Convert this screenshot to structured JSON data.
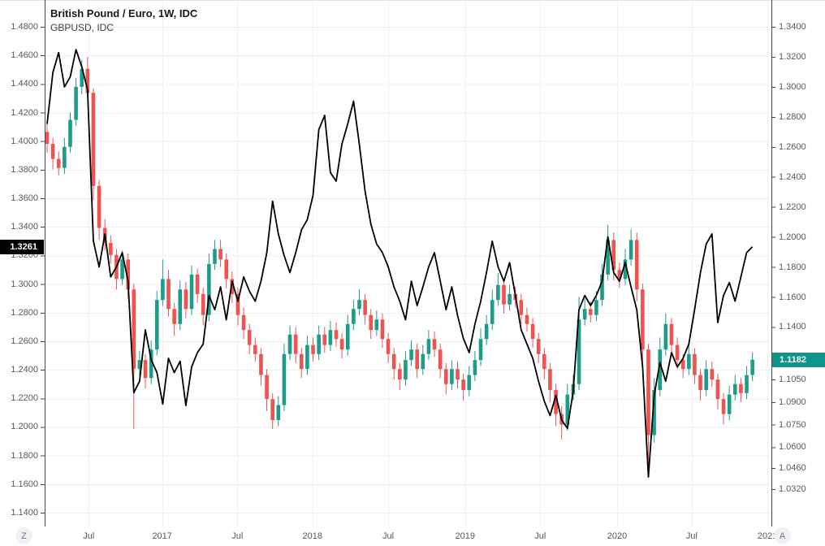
{
  "legend": {
    "title": "British Pound / Euro, 1W, IDC",
    "subtitle": "GBPUSD, IDC"
  },
  "buttons": {
    "zoom_hint": "Z",
    "axis_hint": "A"
  },
  "colors": {
    "up_candle": "#1d9c89",
    "down_candle": "#ef5350",
    "overlay_line": "#000000",
    "grid": "#edf0f7",
    "axis_border": "#434651",
    "outer_border": "#e0e3eb",
    "axis_text": "#555a64",
    "left_price_label_bg": "#000000",
    "right_price_label_bg": "#0f9489",
    "price_label_text": "#ffffff"
  },
  "chart_data": {
    "type": "candlestick+line",
    "title": "British Pound / Euro, 1W, IDC with GBPUSD, IDC overlay",
    "timeframe": "1W",
    "grid": true,
    "x_axis": {
      "ticks": [
        {
          "label": "Jul",
          "bar": 7.2
        },
        {
          "label": "2017",
          "bar": 19.9
        },
        {
          "label": "Jul",
          "bar": 32.9
        },
        {
          "label": "2018",
          "bar": 45.9
        },
        {
          "label": "Jul",
          "bar": 59.0
        },
        {
          "label": "2019",
          "bar": 72.3
        },
        {
          "label": "Jul",
          "bar": 85.3
        },
        {
          "label": "2020",
          "bar": 98.6
        },
        {
          "label": "Jul",
          "bar": 111.5
        },
        {
          "label": "2021",
          "bar": 124.6
        }
      ]
    },
    "left_axis": {
      "series": "GBPUSD",
      "min": 1.14,
      "max": 1.48,
      "ticks": [
        1.48,
        1.46,
        1.44,
        1.42,
        1.4,
        1.38,
        1.36,
        1.34,
        1.32,
        1.3,
        1.28,
        1.26,
        1.24,
        1.22,
        1.2,
        1.18,
        1.16,
        1.14
      ],
      "last_price": 1.3261,
      "last_price_label": "1.3261"
    },
    "right_axis": {
      "series": "GBP/EUR",
      "min": 1.032,
      "max": 1.34,
      "ticks": [
        1.34,
        1.32,
        1.3,
        1.28,
        1.26,
        1.24,
        1.22,
        1.2,
        1.18,
        1.16,
        1.14,
        1.105,
        1.09,
        1.075,
        1.06,
        1.046,
        1.032
      ],
      "last_price": 1.1182,
      "last_price_label": "1.1182"
    },
    "series": [
      {
        "name": "British Pound / Euro weekly candles",
        "type": "candlestick",
        "axis": "right",
        "first_open": 1.27,
        "points_format": [
          "close",
          "upper_wick",
          "lower_wick"
        ],
        "points": [
          [
            1.262,
            0.005,
            0.006
          ],
          [
            1.252,
            0.004,
            0.007
          ],
          [
            1.246,
            0.005,
            0.005
          ],
          [
            1.26,
            0.006,
            0.004
          ],
          [
            1.278,
            0.005,
            0.004
          ],
          [
            1.3,
            0.006,
            0.004
          ],
          [
            1.312,
            0.006,
            0.005
          ],
          [
            1.296,
            0.008,
            0.004
          ],
          [
            1.234,
            0.003,
            0.01
          ],
          [
            1.206,
            0.004,
            0.008
          ],
          [
            1.196,
            0.006,
            0.005
          ],
          [
            1.188,
            0.005,
            0.006
          ],
          [
            1.172,
            0.004,
            0.007
          ],
          [
            1.185,
            0.006,
            0.004
          ],
          [
            1.165,
            0.004,
            0.006
          ],
          [
            1.112,
            0.004,
            0.04
          ],
          [
            1.118,
            0.006,
            0.005
          ],
          [
            1.106,
            0.004,
            0.007
          ],
          [
            1.125,
            0.006,
            0.004
          ],
          [
            1.158,
            0.006,
            0.004
          ],
          [
            1.172,
            0.013,
            0.004
          ],
          [
            1.152,
            0.006,
            0.005
          ],
          [
            1.142,
            0.004,
            0.008
          ],
          [
            1.165,
            0.006,
            0.004
          ],
          [
            1.152,
            0.005,
            0.006
          ],
          [
            1.175,
            0.006,
            0.004
          ],
          [
            1.162,
            0.004,
            0.006
          ],
          [
            1.148,
            0.004,
            0.007
          ],
          [
            1.182,
            0.007,
            0.004
          ],
          [
            1.192,
            0.006,
            0.004
          ],
          [
            1.185,
            0.006,
            0.005
          ],
          [
            1.172,
            0.004,
            0.006
          ],
          [
            1.162,
            0.005,
            0.006
          ],
          [
            1.148,
            0.004,
            0.007
          ],
          [
            1.138,
            0.005,
            0.006
          ],
          [
            1.128,
            0.004,
            0.006
          ],
          [
            1.122,
            0.005,
            0.005
          ],
          [
            1.108,
            0.004,
            0.007
          ],
          [
            1.092,
            0.004,
            0.008
          ],
          [
            1.078,
            0.004,
            0.006
          ],
          [
            1.088,
            0.006,
            0.004
          ],
          [
            1.122,
            0.007,
            0.004
          ],
          [
            1.135,
            0.006,
            0.004
          ],
          [
            1.122,
            0.005,
            0.006
          ],
          [
            1.112,
            0.004,
            0.006
          ],
          [
            1.128,
            0.006,
            0.004
          ],
          [
            1.122,
            0.005,
            0.005
          ],
          [
            1.135,
            0.006,
            0.004
          ],
          [
            1.128,
            0.005,
            0.005
          ],
          [
            1.138,
            0.006,
            0.004
          ],
          [
            1.132,
            0.005,
            0.005
          ],
          [
            1.125,
            0.004,
            0.006
          ],
          [
            1.142,
            0.006,
            0.004
          ],
          [
            1.152,
            0.006,
            0.004
          ],
          [
            1.158,
            0.007,
            0.004
          ],
          [
            1.148,
            0.004,
            0.006
          ],
          [
            1.138,
            0.004,
            0.006
          ],
          [
            1.145,
            0.006,
            0.004
          ],
          [
            1.132,
            0.004,
            0.006
          ],
          [
            1.122,
            0.004,
            0.006
          ],
          [
            1.112,
            0.004,
            0.007
          ],
          [
            1.105,
            0.004,
            0.007
          ],
          [
            1.118,
            0.006,
            0.004
          ],
          [
            1.125,
            0.006,
            0.004
          ],
          [
            1.112,
            0.004,
            0.006
          ],
          [
            1.122,
            0.006,
            0.004
          ],
          [
            1.132,
            0.006,
            0.004
          ],
          [
            1.125,
            0.005,
            0.005
          ],
          [
            1.112,
            0.004,
            0.006
          ],
          [
            1.102,
            0.004,
            0.007
          ],
          [
            1.112,
            0.006,
            0.004
          ],
          [
            1.105,
            0.005,
            0.006
          ],
          [
            1.098,
            0.004,
            0.007
          ],
          [
            1.108,
            0.006,
            0.004
          ],
          [
            1.118,
            0.006,
            0.004
          ],
          [
            1.132,
            0.007,
            0.004
          ],
          [
            1.142,
            0.006,
            0.004
          ],
          [
            1.158,
            0.007,
            0.004
          ],
          [
            1.168,
            0.008,
            0.004
          ],
          [
            1.155,
            0.004,
            0.006
          ],
          [
            1.162,
            0.006,
            0.004
          ],
          [
            1.158,
            0.005,
            0.005
          ],
          [
            1.148,
            0.004,
            0.006
          ],
          [
            1.142,
            0.005,
            0.005
          ],
          [
            1.132,
            0.004,
            0.006
          ],
          [
            1.122,
            0.004,
            0.006
          ],
          [
            1.112,
            0.004,
            0.007
          ],
          [
            1.098,
            0.004,
            0.008
          ],
          [
            1.082,
            0.004,
            0.008
          ],
          [
            1.075,
            0.005,
            0.01
          ],
          [
            1.095,
            0.007,
            0.004
          ],
          [
            1.102,
            0.006,
            0.004
          ],
          [
            1.145,
            0.015,
            0.004
          ],
          [
            1.152,
            0.007,
            0.004
          ],
          [
            1.148,
            0.005,
            0.005
          ],
          [
            1.158,
            0.006,
            0.004
          ],
          [
            1.175,
            0.007,
            0.004
          ],
          [
            1.198,
            0.01,
            0.004
          ],
          [
            1.178,
            0.005,
            0.007
          ],
          [
            1.172,
            0.005,
            0.006
          ],
          [
            1.185,
            0.007,
            0.004
          ],
          [
            1.198,
            0.007,
            0.004
          ],
          [
            1.165,
            0.005,
            0.008
          ],
          [
            1.125,
            0.004,
            0.01
          ],
          [
            1.068,
            0.004,
            0.023
          ],
          [
            1.098,
            0.008,
            0.005
          ],
          [
            1.125,
            0.008,
            0.004
          ],
          [
            1.142,
            0.007,
            0.004
          ],
          [
            1.128,
            0.004,
            0.006
          ],
          [
            1.118,
            0.005,
            0.006
          ],
          [
            1.112,
            0.004,
            0.006
          ],
          [
            1.122,
            0.006,
            0.004
          ],
          [
            1.108,
            0.004,
            0.006
          ],
          [
            1.098,
            0.004,
            0.007
          ],
          [
            1.112,
            0.006,
            0.004
          ],
          [
            1.105,
            0.005,
            0.005
          ],
          [
            1.092,
            0.004,
            0.007
          ],
          [
            1.082,
            0.004,
            0.007
          ],
          [
            1.095,
            0.006,
            0.004
          ],
          [
            1.102,
            0.006,
            0.004
          ],
          [
            1.096,
            0.004,
            0.006
          ],
          [
            1.108,
            0.006,
            0.004
          ],
          [
            1.1182,
            0.005,
            0.004
          ]
        ]
      },
      {
        "name": "GBPUSD weekly close line",
        "type": "line",
        "axis": "left",
        "values": [
          1.412,
          1.448,
          1.462,
          1.438,
          1.445,
          1.464,
          1.452,
          1.436,
          1.33,
          1.312,
          1.335,
          1.305,
          1.312,
          1.322,
          1.302,
          1.224,
          1.232,
          1.268,
          1.247,
          1.238,
          1.216,
          1.248,
          1.238,
          1.246,
          1.215,
          1.242,
          1.252,
          1.258,
          1.292,
          1.282,
          1.298,
          1.275,
          1.302,
          1.288,
          1.305,
          1.295,
          1.288,
          1.302,
          1.322,
          1.358,
          1.335,
          1.32,
          1.308,
          1.322,
          1.338,
          1.345,
          1.362,
          1.408,
          1.418,
          1.378,
          1.372,
          1.398,
          1.412,
          1.428,
          1.398,
          1.365,
          1.342,
          1.328,
          1.322,
          1.312,
          1.298,
          1.288,
          1.275,
          1.302,
          1.285,
          1.298,
          1.312,
          1.322,
          1.302,
          1.282,
          1.298,
          1.278,
          1.262,
          1.252,
          1.272,
          1.288,
          1.308,
          1.33,
          1.312,
          1.302,
          1.315,
          1.292,
          1.268,
          1.258,
          1.248,
          1.232,
          1.218,
          1.208,
          1.222,
          1.205,
          1.199,
          1.225,
          1.282,
          1.292,
          1.285,
          1.292,
          1.302,
          1.333,
          1.308,
          1.302,
          1.315,
          1.298,
          1.282,
          1.242,
          1.165,
          1.222,
          1.245,
          1.232,
          1.252,
          1.242,
          1.248,
          1.258,
          1.282,
          1.308,
          1.328,
          1.335,
          1.273,
          1.292,
          1.301,
          1.288,
          1.305,
          1.322,
          1.3261
        ]
      }
    ]
  }
}
